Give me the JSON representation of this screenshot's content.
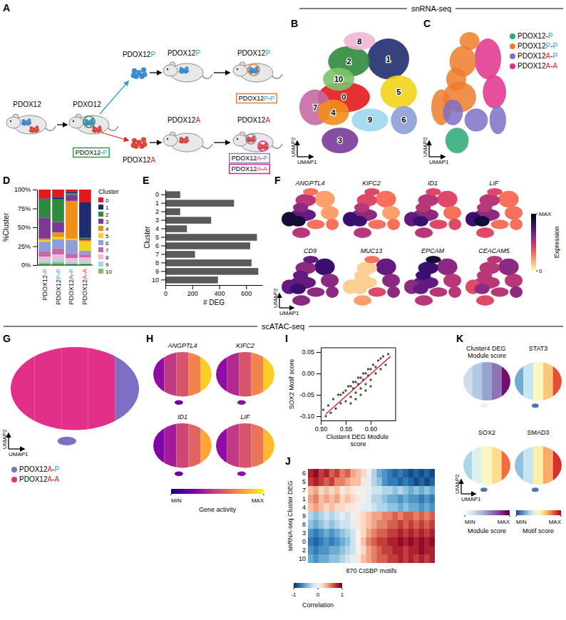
{
  "headers": [
    "snRNA-seq",
    "scATAC-seq"
  ],
  "diagram": {
    "panel": "A",
    "mouse_labels": [
      "PDOX12",
      "PDXO12",
      "PDOX12P",
      "PDOX12P",
      "PDOX12A",
      "PDOX12A"
    ],
    "cell_labels": [
      "PDOX12P",
      "PDOX12A"
    ],
    "sample_boxes": [
      {
        "text": "PDOX12-P",
        "color": "#2e9b4a"
      },
      {
        "text": "PDOX12P-P",
        "color": "#ee7d2c"
      },
      {
        "text": "PDOX12A-P",
        "color": "#8b80c8"
      },
      {
        "text": "PDOX12A-A",
        "color": "#d9237f"
      }
    ]
  },
  "chart_data": [
    {
      "panel": "B",
      "type": "umap",
      "x_label": "UMAP1",
      "y_label": "UMAP2",
      "tick_labels": false,
      "clusters": [
        {
          "name": "0",
          "color": "#e31a1c",
          "x": 38,
          "y": 48,
          "rx": 20,
          "ry": 12
        },
        {
          "name": "1",
          "color": "#1f2d6e",
          "x": 72,
          "y": 78,
          "rx": 16,
          "ry": 16
        },
        {
          "name": "2",
          "color": "#2e8b3d",
          "x": 42,
          "y": 76,
          "rx": 16,
          "ry": 12
        },
        {
          "name": "3",
          "color": "#7a3a96",
          "x": 35,
          "y": 14,
          "rx": 14,
          "ry": 10
        },
        {
          "name": "4",
          "color": "#f28e1c",
          "x": 30,
          "y": 36,
          "rx": 12,
          "ry": 10
        },
        {
          "name": "5",
          "color": "#f3d41c",
          "x": 80,
          "y": 52,
          "rx": 14,
          "ry": 13
        },
        {
          "name": "6",
          "color": "#8d9ed8",
          "x": 84,
          "y": 30,
          "rx": 10,
          "ry": 11
        },
        {
          "name": "7",
          "color": "#c56aa6",
          "x": 16,
          "y": 40,
          "rx": 12,
          "ry": 14
        },
        {
          "name": "8",
          "color": "#f2b6d6",
          "x": 50,
          "y": 92,
          "rx": 12,
          "ry": 7
        },
        {
          "name": "9",
          "color": "#9fd7ec",
          "x": 58,
          "y": 30,
          "rx": 14,
          "ry": 9
        },
        {
          "name": "10",
          "color": "#7cc36b",
          "x": 34,
          "y": 62,
          "rx": 12,
          "ry": 9
        }
      ]
    },
    {
      "panel": "C",
      "type": "umap",
      "x_label": "UMAP1",
      "y_label": "UMAP2",
      "tick_labels": false,
      "legend": "right",
      "series": [
        {
          "name": "PDOX12-P",
          "color": "#2aa876"
        },
        {
          "name": "PDOX12P-P",
          "color": "#ee7d2c"
        },
        {
          "name": "PDOX12A-P",
          "color": "#7f6fc4"
        },
        {
          "name": "PDOX12A-A",
          "color": "#e2308a"
        }
      ],
      "cluster_sample": [
        "PDOX12P-P",
        "PDOX12A-A",
        "PDOX12P-P",
        "PDOX12-P",
        "PDOX12A-P",
        "PDOX12A-A",
        "PDOX12A-P",
        "PDOX12P-P",
        "PDOX12P-P",
        "PDOX12A-P",
        "PDOX12P-P"
      ]
    },
    {
      "panel": "D",
      "type": "bar",
      "stacked": true,
      "legend": "right",
      "legend_title": "Cluster",
      "y_label": "%Cluster",
      "categories": [
        "PDOX12-P",
        "PDOX12P-P",
        "PDOX12A-P",
        "PDOX12A-A"
      ],
      "ylim": [
        0,
        100
      ],
      "yticks": [
        {
          "value": 0,
          "label": "0%"
        },
        {
          "value": 25,
          "label": "25%"
        },
        {
          "value": 50,
          "label": "50%"
        },
        {
          "value": 75,
          "label": "75%"
        },
        {
          "value": 100,
          "label": "100%"
        }
      ],
      "series": [
        {
          "name": "0",
          "color": "#e31a1c",
          "values": [
            12,
            10,
            3,
            17
          ]
        },
        {
          "name": "1",
          "color": "#1f2d6e",
          "values": [
            1,
            3,
            2,
            47
          ]
        },
        {
          "name": "2",
          "color": "#2e8b3d",
          "values": [
            24,
            30,
            2,
            1
          ]
        },
        {
          "name": "3",
          "color": "#7a3a96",
          "values": [
            28,
            14,
            8,
            2
          ]
        },
        {
          "name": "4",
          "color": "#f28e1c",
          "values": [
            2,
            6,
            50,
            2
          ]
        },
        {
          "name": "5",
          "color": "#f3d41c",
          "values": [
            2,
            3,
            2,
            12
          ]
        },
        {
          "name": "6",
          "color": "#8d9ed8",
          "values": [
            13,
            12,
            18,
            5
          ]
        },
        {
          "name": "7",
          "color": "#c56aa6",
          "values": [
            7,
            8,
            6,
            4
          ]
        },
        {
          "name": "8",
          "color": "#f2b6d6",
          "values": [
            5,
            6,
            4,
            5
          ]
        },
        {
          "name": "9",
          "color": "#9fd7ec",
          "values": [
            3,
            4,
            3,
            3
          ]
        },
        {
          "name": "10",
          "color": "#7cc36b",
          "values": [
            3,
            4,
            2,
            2
          ]
        }
      ]
    },
    {
      "panel": "E",
      "type": "bar",
      "orientation": "horizontal",
      "x_label": "# DEG",
      "y_label": "Cluster",
      "categories": [
        "0",
        "1",
        "2",
        "3",
        "4",
        "5",
        "6",
        "7",
        "8",
        "9",
        "10"
      ],
      "values": [
        110,
        510,
        110,
        340,
        160,
        680,
        630,
        220,
        640,
        690,
        390
      ],
      "color": "#5a5a5a",
      "xlim": [
        0,
        720
      ],
      "xticks": [
        0,
        200,
        400,
        600
      ]
    },
    {
      "panel": "F",
      "type": "feature_umap",
      "x_label": "UMAP1",
      "y_label": "UMAP2",
      "tick_labels": false,
      "genes": [
        {
          "name": "ANGPTL4",
          "values": [
            0.7,
            0.2,
            0.5,
            0.5,
            0.9,
            0.2,
            0.3,
            0.9,
            0.3,
            0.3,
            0.6
          ]
        },
        {
          "name": "KIFC2",
          "values": [
            0.6,
            0.3,
            0.4,
            0.5,
            0.8,
            0.2,
            0.3,
            0.8,
            0.4,
            0.3,
            0.5
          ]
        },
        {
          "name": "ID1",
          "values": [
            0.6,
            0.4,
            0.5,
            0.5,
            0.8,
            0.3,
            0.4,
            0.7,
            0.4,
            0.4,
            0.5
          ]
        },
        {
          "name": "LIF",
          "values": [
            0.6,
            0.3,
            0.5,
            0.4,
            0.9,
            0.3,
            0.3,
            0.8,
            0.4,
            0.3,
            0.5
          ]
        },
        {
          "name": "CD9",
          "values": [
            0.7,
            0.8,
            0.6,
            0.6,
            0.8,
            0.6,
            0.6,
            0.7,
            0.7,
            0.6,
            0.7
          ]
        },
        {
          "name": "MUC13",
          "values": [
            0.1,
            0.7,
            0.1,
            0.2,
            0.1,
            0.6,
            0.6,
            0.1,
            0.3,
            0.4,
            0.1
          ]
        },
        {
          "name": "EPCAM",
          "values": [
            0.7,
            0.6,
            0.8,
            0.5,
            0.7,
            0.5,
            0.5,
            0.6,
            0.9,
            0.5,
            0.8
          ]
        },
        {
          "name": "CEACAM5",
          "values": [
            0.5,
            0.6,
            0.5,
            0.4,
            0.6,
            0.5,
            0.6,
            0.4,
            0.5,
            0.5,
            0.5
          ]
        }
      ],
      "colorbar": {
        "title": "Expression",
        "range": [
          0,
          1
        ],
        "ticks": [
          0,
          {
            "value": 1,
            "label": "MAX"
          }
        ]
      }
    },
    {
      "panel": "G",
      "type": "umap",
      "x_label": "UMAP1",
      "y_label": "UMAP2",
      "tick_labels": false,
      "legend": "bottom",
      "series": [
        {
          "name": "PDOX12A-P",
          "color": "#7f6fc4"
        },
        {
          "name": "PDOX12A-A",
          "color": "#e2308a"
        }
      ],
      "outline": {
        "cx": 50,
        "cy": 58,
        "rx": 48,
        "ry": 38
      },
      "island": {
        "cx": 44,
        "cy": 10,
        "rx": 7,
        "ry": 4
      },
      "zones": [
        {
          "x0": 0,
          "x1": 20
        },
        {
          "x0": 20,
          "x1": 40
        },
        {
          "x0": 40,
          "x1": 60
        },
        {
          "x0": 60,
          "x1": 80
        },
        {
          "x0": 80,
          "x1": 100
        }
      ],
      "zone_sample": [
        "PDOX12A-A",
        "PDOX12A-A",
        "PDOX12A-A",
        "PDOX12A-A",
        "PDOX12A-P",
        "PDOX12A-P"
      ]
    },
    {
      "panel": "H",
      "type": "feature_umap",
      "tick_labels": false,
      "features": [
        {
          "name": "ANGPTL4",
          "values": [
            0.3,
            0.45,
            0.55,
            0.7,
            0.9,
            0.2
          ]
        },
        {
          "name": "KIFC2",
          "values": [
            0.3,
            0.4,
            0.55,
            0.7,
            0.9,
            0.3
          ]
        },
        {
          "name": "ID1",
          "values": [
            0.25,
            0.35,
            0.5,
            0.6,
            0.8,
            0.2
          ]
        },
        {
          "name": "LIF",
          "values": [
            0.3,
            0.45,
            0.55,
            0.65,
            0.85,
            0.3
          ]
        }
      ],
      "colorbar": {
        "title": "Gene activity",
        "range": [
          0,
          1
        ],
        "ticks": [
          {
            "value": 0,
            "label": "MIN"
          },
          {
            "value": 1,
            "label": "MAX"
          }
        ]
      }
    },
    {
      "panel": "I",
      "type": "scatter",
      "color": "#222222",
      "x_label": "Cluster4 DEG Module score",
      "y_label": "SOX2 Motif score",
      "x": [
        0.505,
        0.51,
        0.515,
        0.52,
        0.525,
        0.53,
        0.535,
        0.54,
        0.545,
        0.55,
        0.555,
        0.56,
        0.565,
        0.57,
        0.575,
        0.58,
        0.585,
        0.59,
        0.595,
        0.6,
        0.605,
        0.61,
        0.615,
        0.62,
        0.625,
        0.63,
        0.635,
        0.54,
        0.55,
        0.56,
        0.57,
        0.58,
        0.59,
        0.6,
        0.61,
        0.56,
        0.57,
        0.58,
        0.59,
        0.6,
        0.565,
        0.575,
        0.585,
        0.595,
        0.62
      ],
      "y": [
        -0.085,
        -0.1,
        -0.075,
        -0.092,
        -0.06,
        -0.082,
        -0.05,
        -0.07,
        -0.045,
        -0.065,
        -0.03,
        -0.055,
        -0.02,
        -0.045,
        -0.01,
        -0.035,
        0.0,
        -0.025,
        0.01,
        -0.015,
        0.02,
        0.0,
        0.03,
        0.01,
        0.04,
        0.02,
        0.045,
        -0.05,
        -0.04,
        -0.03,
        -0.02,
        -0.01,
        0.0,
        0.01,
        0.015,
        -0.07,
        -0.06,
        -0.05,
        -0.04,
        -0.03,
        -0.035,
        -0.025,
        -0.015,
        -0.005,
        0.035
      ],
      "fit": {
        "x": [
          0.51,
          0.64
        ],
        "y": [
          -0.095,
          0.04
        ]
      },
      "xlim": [
        0.5,
        0.65
      ],
      "ylim": [
        -0.11,
        0.06
      ],
      "xticks": [
        {
          "value": 0.5,
          "label": "0.50"
        },
        {
          "value": 0.55,
          "label": "0.55"
        },
        {
          "value": 0.6,
          "label": "0.60"
        }
      ],
      "yticks": [
        {
          "value": -0.1,
          "label": "-0.10"
        },
        {
          "value": -0.05,
          "label": "-0.05"
        },
        {
          "value": 0,
          "label": "0.00"
        },
        {
          "value": 0.05,
          "label": "0.05"
        }
      ]
    },
    {
      "panel": "J",
      "type": "heatmap",
      "x_label": "870 CISBP motifs",
      "y_label": "snRNA-seq Cluster DEG",
      "rows": [
        "6",
        "5",
        "7",
        "1",
        "4",
        "9",
        "8",
        "3",
        "0",
        "2",
        "10"
      ],
      "cells": [
        [
          0.8,
          0.9,
          0.7,
          0.8,
          0.6,
          0.7,
          0.5,
          0.6,
          0.4,
          0.3,
          0.2,
          0.0,
          -0.3,
          -0.5,
          -0.6,
          -0.7,
          -0.8,
          -0.7,
          -0.8,
          -0.9,
          -0.8,
          -0.9,
          -0.8,
          -0.9
        ],
        [
          0.7,
          0.8,
          0.7,
          0.6,
          0.7,
          0.5,
          0.5,
          0.4,
          0.3,
          0.3,
          0.1,
          -0.1,
          -0.3,
          -0.4,
          -0.6,
          -0.7,
          -0.7,
          -0.8,
          -0.7,
          -0.8,
          -0.9,
          -0.8,
          -0.9,
          -0.8
        ],
        [
          0.3,
          0.4,
          0.2,
          0.3,
          0.2,
          0.3,
          0.1,
          0.2,
          0.1,
          0.0,
          0.0,
          -0.1,
          -0.2,
          -0.2,
          -0.3,
          -0.3,
          -0.4,
          -0.3,
          -0.4,
          -0.5,
          -0.4,
          -0.5,
          -0.4,
          -0.5
        ],
        [
          0.4,
          0.5,
          0.3,
          0.4,
          0.3,
          0.4,
          0.2,
          0.3,
          0.2,
          0.1,
          0.0,
          -0.1,
          -0.3,
          -0.3,
          -0.4,
          -0.5,
          -0.5,
          -0.6,
          -0.5,
          -0.6,
          -0.6,
          -0.7,
          -0.6,
          -0.7
        ],
        [
          0.3,
          0.4,
          0.3,
          0.2,
          0.3,
          0.2,
          0.2,
          0.1,
          0.1,
          0.0,
          -0.1,
          -0.1,
          -0.2,
          -0.3,
          -0.3,
          -0.4,
          -0.4,
          -0.5,
          -0.4,
          -0.5,
          -0.5,
          -0.6,
          -0.5,
          -0.6
        ],
        [
          -0.3,
          -0.4,
          -0.3,
          -0.2,
          -0.3,
          -0.2,
          -0.1,
          -0.2,
          0.0,
          0.1,
          0.2,
          0.3,
          0.4,
          0.4,
          0.5,
          0.5,
          0.6,
          0.5,
          0.6,
          0.6,
          0.5,
          0.6,
          0.5,
          0.6
        ],
        [
          -0.4,
          -0.5,
          -0.4,
          -0.3,
          -0.4,
          -0.3,
          -0.2,
          -0.2,
          -0.1,
          0.1,
          0.2,
          0.3,
          0.4,
          0.5,
          0.5,
          0.6,
          0.6,
          0.7,
          0.6,
          0.7,
          0.6,
          0.7,
          0.6,
          0.7
        ],
        [
          -0.6,
          -0.7,
          -0.6,
          -0.5,
          -0.6,
          -0.5,
          -0.4,
          -0.3,
          -0.2,
          0.0,
          0.2,
          0.4,
          0.5,
          0.6,
          0.6,
          0.7,
          0.7,
          0.8,
          0.7,
          0.8,
          0.7,
          0.8,
          0.7,
          0.8
        ],
        [
          -0.7,
          -0.8,
          -0.7,
          -0.6,
          -0.7,
          -0.6,
          -0.5,
          -0.4,
          -0.2,
          0.0,
          0.3,
          0.5,
          0.6,
          0.7,
          0.7,
          0.8,
          0.8,
          0.9,
          0.8,
          0.9,
          0.8,
          0.9,
          0.8,
          0.9
        ],
        [
          -0.6,
          -0.7,
          -0.6,
          -0.6,
          -0.5,
          -0.5,
          -0.4,
          -0.3,
          -0.2,
          0.0,
          0.2,
          0.4,
          0.5,
          0.6,
          0.7,
          0.7,
          0.8,
          0.8,
          0.7,
          0.8,
          0.8,
          0.9,
          0.8,
          0.8
        ],
        [
          -0.5,
          -0.6,
          -0.5,
          -0.5,
          -0.4,
          -0.4,
          -0.3,
          -0.2,
          -0.1,
          0.1,
          0.3,
          0.4,
          0.5,
          0.6,
          0.6,
          0.7,
          0.7,
          0.8,
          0.7,
          0.8,
          0.7,
          0.8,
          0.7,
          0.8
        ]
      ],
      "colorbar": {
        "title": "Correlation",
        "range": [
          -1,
          1
        ],
        "ticks": [
          -1,
          0,
          1
        ]
      }
    },
    {
      "panel": "K",
      "type": "feature_umap",
      "x_label": "UMAP1",
      "y_label": "UMAP2",
      "tick_labels": false,
      "module": {
        "name": "Cluster4 DEG Module score",
        "values": [
          0.2,
          0.3,
          0.45,
          0.6,
          0.9,
          0.1
        ]
      },
      "motifs": [
        {
          "name": "STAT3",
          "values": [
            0.2,
            0.35,
            0.5,
            0.65,
            0.85,
            0.1
          ]
        },
        {
          "name": "SOX2",
          "values": [
            0.3,
            0.4,
            0.5,
            0.6,
            0.8,
            0.1
          ]
        },
        {
          "name": "SMAD3",
          "values": [
            0.25,
            0.35,
            0.55,
            0.7,
            0.9,
            0.1
          ]
        }
      ],
      "module_colorbar": {
        "title": "Module score",
        "range": [
          0,
          1
        ],
        "ticks": [
          {
            "value": 0,
            "label": "MIN"
          },
          {
            "value": 1,
            "label": "MAX"
          }
        ]
      },
      "motif_colorbar": {
        "title": "Motif score",
        "range": [
          0,
          1
        ],
        "ticks": [
          {
            "value": 0,
            "label": "MIN"
          },
          {
            "value": 1,
            "label": "MAX"
          }
        ]
      }
    }
  ]
}
